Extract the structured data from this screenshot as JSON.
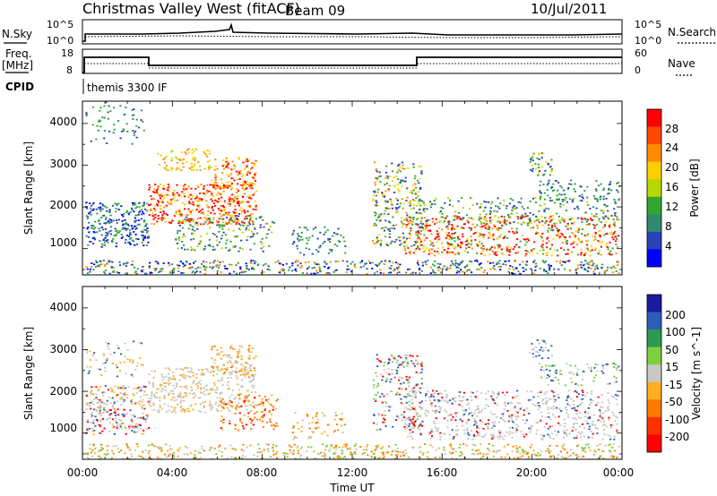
{
  "header": {
    "title": "Christmas Valley West (fitACF)",
    "beam": "Beam 09",
    "date": "10/Jul/2011"
  },
  "sky_panel": {
    "left_label": "N.Sky",
    "right_label": "N.Search",
    "left_ticks": [
      "10^5",
      "10^0"
    ],
    "right_ticks": [
      "10^5",
      "10^0"
    ]
  },
  "freq_panel": {
    "left_label_1": "Freq.",
    "left_label_2": "[MHz]",
    "right_label": "Nave",
    "left_ticks": [
      "18",
      "8"
    ],
    "right_ticks": [
      "60",
      "0"
    ]
  },
  "cpid": {
    "label": "CPID",
    "program": "themis 3300 IF"
  },
  "x_axis": {
    "label": "Time UT",
    "ticks": [
      "00:00",
      "04:00",
      "08:00",
      "12:00",
      "16:00",
      "20:00",
      "00:00"
    ]
  },
  "power_panel": {
    "ylabel": "Slant Range [km]",
    "yticks": [
      "4000",
      "3000",
      "2000",
      "1000"
    ],
    "colorbar_label": "Power [dB]",
    "colorbar_ticks": [
      "28",
      "24",
      "20",
      "16",
      "12",
      "8",
      "4"
    ],
    "colorbar_colors": [
      "#ff0000",
      "#ff4a00",
      "#ff8c00",
      "#ffd000",
      "#b7d800",
      "#33a830",
      "#2f8a70",
      "#2844b8",
      "#0000ff"
    ]
  },
  "velocity_panel": {
    "ylabel": "Slant Range [km]",
    "yticks": [
      "4000",
      "3000",
      "2000",
      "1000"
    ],
    "colorbar_label": "Velocity [m s^-1]",
    "colorbar_ticks": [
      "200",
      "100",
      "50",
      "15",
      "-15",
      "-50",
      "-100",
      "-200"
    ],
    "colorbar_colors": [
      "#1a1aa0",
      "#2b5fb8",
      "#2e9a50",
      "#7cd040",
      "#c8c8c0",
      "#ffb020",
      "#ff7a00",
      "#ff3000",
      "#ff0000"
    ]
  },
  "chart_data": {
    "type": "heatmap",
    "x_range_hours": [
      0,
      24
    ],
    "y_range_km": [
      180,
      4500
    ],
    "frequency_mhz_segments": [
      {
        "start": "00:00",
        "end": "02:55",
        "value": 14.5
      },
      {
        "start": "02:55",
        "end": "15:00",
        "value": 10.5
      },
      {
        "start": "15:00",
        "end": "24:00",
        "value": 14.5
      }
    ]
  }
}
